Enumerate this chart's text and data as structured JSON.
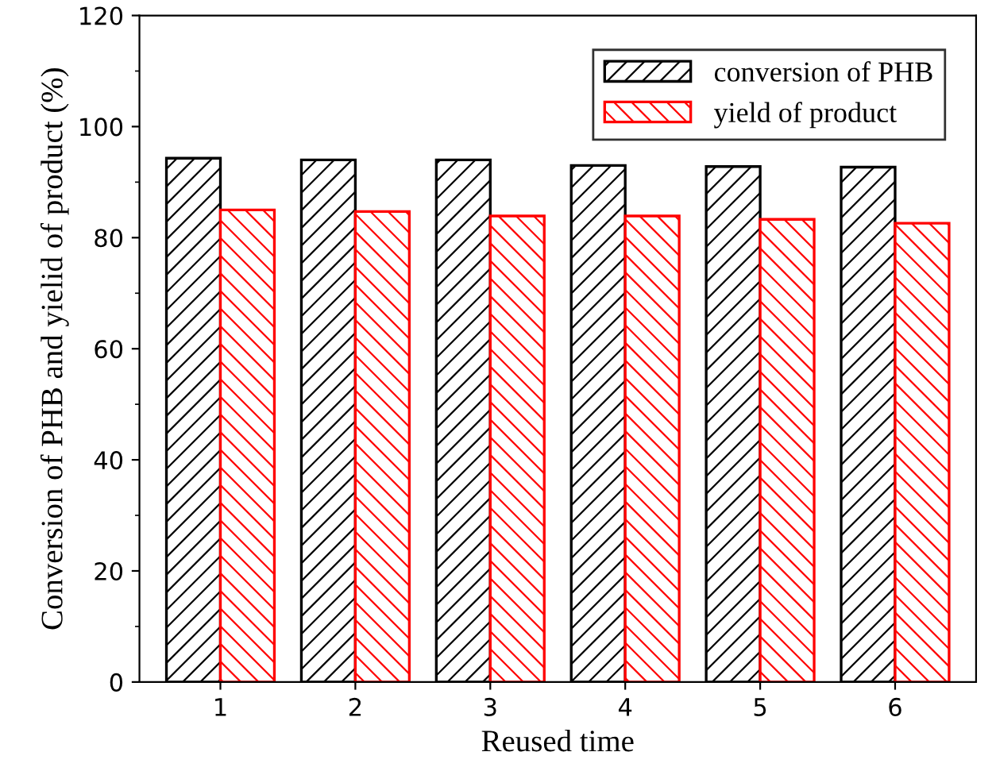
{
  "chart_data": {
    "type": "bar",
    "xlabel": "Reused time",
    "ylabel": "Conversion of PHB and yielid of product (%)",
    "categories": [
      "1",
      "2",
      "3",
      "4",
      "5",
      "6"
    ],
    "series": [
      {
        "name": "conversion of PHB",
        "color": "#000000",
        "values": [
          94.3,
          94.0,
          94.0,
          93.0,
          92.8,
          92.7
        ]
      },
      {
        "name": "yield of product",
        "color": "#ff0000",
        "values": [
          85.0,
          84.7,
          83.9,
          83.9,
          83.3,
          82.6
        ]
      }
    ],
    "ylim": [
      0,
      120
    ],
    "yticks": [
      0,
      20,
      40,
      60,
      80,
      100,
      120
    ],
    "grid": false,
    "legend": "top right"
  }
}
